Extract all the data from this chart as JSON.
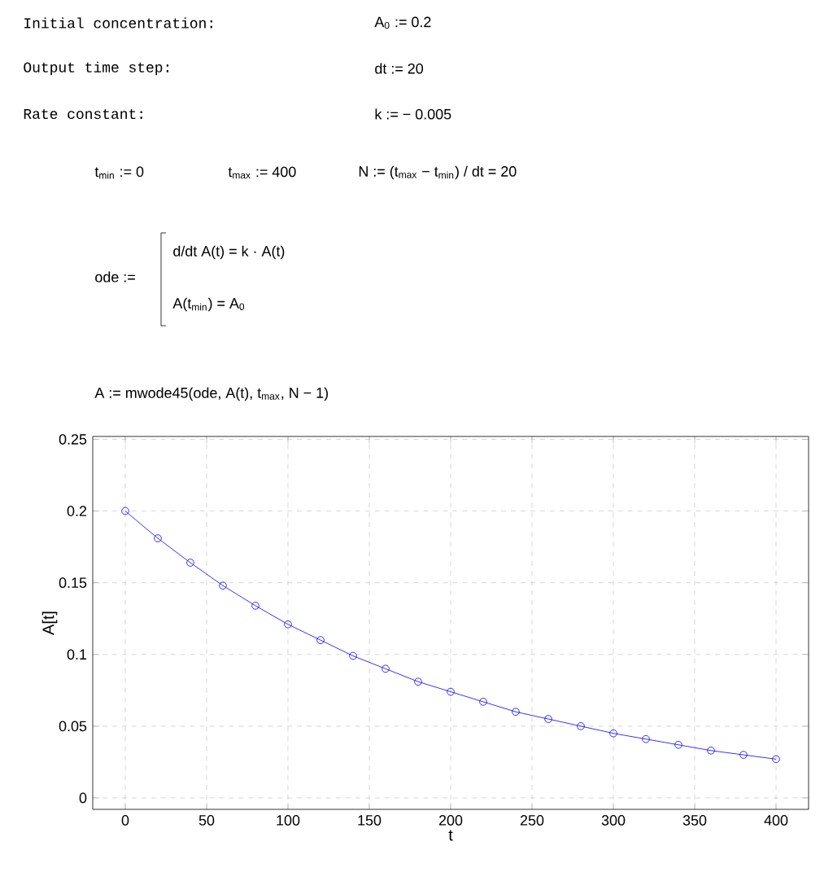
{
  "chart_data": {
    "type": "line",
    "xlabel": "t",
    "ylabel": "A[t]",
    "x": [
      0,
      20,
      40,
      60,
      80,
      100,
      120,
      140,
      160,
      180,
      200,
      220,
      240,
      260,
      280,
      300,
      320,
      340,
      360,
      380,
      400
    ],
    "series": [
      {
        "color": "#0000ff",
        "values": [
          0.2,
          0.181,
          0.164,
          0.148,
          0.134,
          0.121,
          0.11,
          0.099,
          0.09,
          0.081,
          0.074,
          0.067,
          0.06,
          0.055,
          0.05,
          0.045,
          0.041,
          0.037,
          0.033,
          0.03,
          0.027
        ]
      }
    ],
    "xlim": [
      -20,
      420
    ],
    "ylim": [
      -0.008,
      0.252
    ],
    "xticks": [
      0,
      50,
      100,
      150,
      200,
      250,
      300,
      350,
      400
    ],
    "yticks": [
      0,
      0.05,
      0.1,
      0.15,
      0.2,
      0.25
    ],
    "grid": true,
    "marker": "circle",
    "line_style": "solid",
    "annotations": [
      "Initial concentration:",
      "A$_{0}$ := 0.2",
      "Output time step:",
      "dt := 20",
      "Rate constant:",
      "k := − 0.005",
      "t$_{min}$ := 0",
      "t$_{max}$ := 400",
      "N := (t$_{max}$ − t$_{min}$) / dt = 20",
      "ode :=",
      "d/dt A(t) = k · A(t)",
      "A(t$_{min}$) = A$_{0}$",
      "A := mwode45(ode, A(t), t$_{max}$, N − 1)"
    ]
  }
}
